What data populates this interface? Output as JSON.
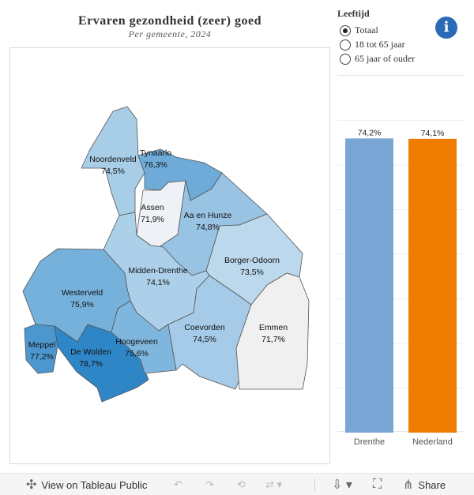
{
  "header": {
    "title": "Ervaren gezondheid (zeer) goed",
    "subtitle": "Per gemeente, 2024"
  },
  "filter": {
    "title": "Leeftijd",
    "options": [
      {
        "label": "Totaal",
        "selected": true
      },
      {
        "label": "18 tot 65 jaar",
        "selected": false
      },
      {
        "label": "65 jaar of ouder",
        "selected": false
      }
    ]
  },
  "info_icon": "info-icon",
  "map": {
    "municipalities": [
      {
        "name": "Noordenveld",
        "value": "74,5%",
        "color": "#a8cde6"
      },
      {
        "name": "Tynaarlo",
        "value": "76,3%",
        "color": "#6fabd8"
      },
      {
        "name": "Assen",
        "value": "71,9%",
        "color": "#eef2f7"
      },
      {
        "name": "Aa en Hunze",
        "value": "74,8%",
        "color": "#98c3e3"
      },
      {
        "name": "Borger-Odoorn",
        "value": "73,5%",
        "color": "#bcd8ec"
      },
      {
        "name": "Midden-Drenthe",
        "value": "74,1%",
        "color": "#acd0e9"
      },
      {
        "name": "Westerveld",
        "value": "75,9%",
        "color": "#76b1db"
      },
      {
        "name": "Meppel",
        "value": "77,2%",
        "color": "#4d97cf"
      },
      {
        "name": "De Wolden",
        "value": "78,7%",
        "color": "#2f86c7"
      },
      {
        "name": "Hoogeveen",
        "value": "75,6%",
        "color": "#7fb6de"
      },
      {
        "name": "Coevorden",
        "value": "74,5%",
        "color": "#a5cbe8"
      },
      {
        "name": "Emmen",
        "value": "71,7%",
        "color": "#f0f0f0"
      }
    ]
  },
  "chart_data": {
    "type": "bar",
    "categories": [
      "Drenthe",
      "Nederland"
    ],
    "values": [
      74.2,
      74.1
    ],
    "value_labels": [
      "74,2%",
      "74,1%"
    ],
    "colors": [
      "#7aa6d6",
      "#f07d00"
    ],
    "title": "",
    "xlabel": "",
    "ylabel": "",
    "ylim": [
      0,
      90
    ]
  },
  "toolbar": {
    "view_label": "View on Tableau Public",
    "share_label": "Share"
  }
}
